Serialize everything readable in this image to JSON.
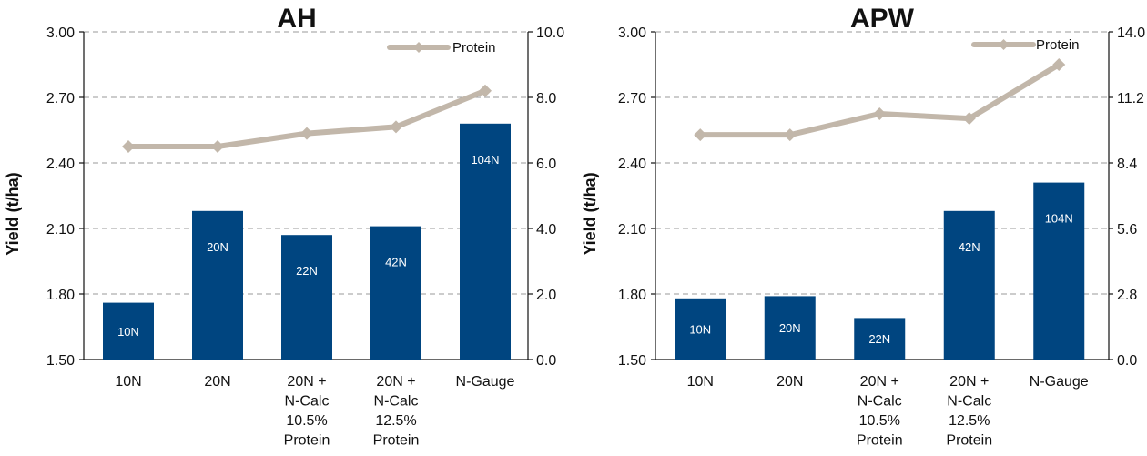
{
  "colors": {
    "bar": "#004580",
    "protein_line": "#c2b7aa",
    "grid": "#9a9a9a"
  },
  "chart_data": [
    {
      "type": "bar",
      "title": "AH",
      "ylabel": "Yield (t/ha)",
      "ylim": [
        1.5,
        3.0
      ],
      "y_ticks": [
        "1.50",
        "1.80",
        "2.10",
        "2.40",
        "2.70",
        "3.00"
      ],
      "y2lim": [
        0,
        10
      ],
      "y2_ticks": [
        "0.0",
        "2.0",
        "4.0",
        "6.0",
        "8.0",
        "10.0"
      ],
      "categories": [
        [
          "10N"
        ],
        [
          "20N"
        ],
        [
          "20N +",
          "N-Calc",
          "10.5%",
          "Protein"
        ],
        [
          "20N +",
          "N-Calc",
          "12.5%",
          "Protein"
        ],
        [
          "N-Gauge"
        ]
      ],
      "bar_labels": [
        "10N",
        "20N",
        "22N",
        "42N",
        "104N"
      ],
      "series": [
        {
          "type": "bar",
          "axis": "left",
          "values": [
            1.76,
            2.18,
            2.07,
            2.11,
            2.58
          ]
        },
        {
          "type": "line",
          "name": "Protein",
          "axis": "right",
          "values": [
            6.5,
            6.5,
            6.9,
            7.1,
            8.2
          ]
        }
      ],
      "legend": {
        "position": "top-right",
        "label": "Protein"
      },
      "grid": true
    },
    {
      "type": "bar",
      "title": "APW",
      "ylabel": "Yield (t/ha)",
      "ylim": [
        1.5,
        3.0
      ],
      "y_ticks": [
        "1.50",
        "1.80",
        "2.10",
        "2.40",
        "2.70",
        "3.00"
      ],
      "y2lim": [
        0,
        14
      ],
      "y2_ticks": [
        "0.0",
        "2.8",
        "5.6",
        "8.4",
        "11.2",
        "14.0"
      ],
      "categories": [
        [
          "10N"
        ],
        [
          "20N"
        ],
        [
          "20N +",
          "N-Calc",
          "10.5%",
          "Protein"
        ],
        [
          "20N +",
          "N-Calc",
          "12.5%",
          "Protein"
        ],
        [
          "N-Gauge"
        ]
      ],
      "bar_labels": [
        "10N",
        "20N",
        "22N",
        "42N",
        "104N"
      ],
      "series": [
        {
          "type": "bar",
          "axis": "left",
          "values": [
            1.78,
            1.79,
            1.69,
            2.18,
            2.31
          ]
        },
        {
          "type": "line",
          "name": "Protein",
          "axis": "right",
          "values": [
            9.6,
            9.6,
            10.5,
            10.3,
            12.6
          ]
        }
      ],
      "legend": {
        "position": "top-right",
        "label": "Protein"
      },
      "grid": true
    }
  ]
}
